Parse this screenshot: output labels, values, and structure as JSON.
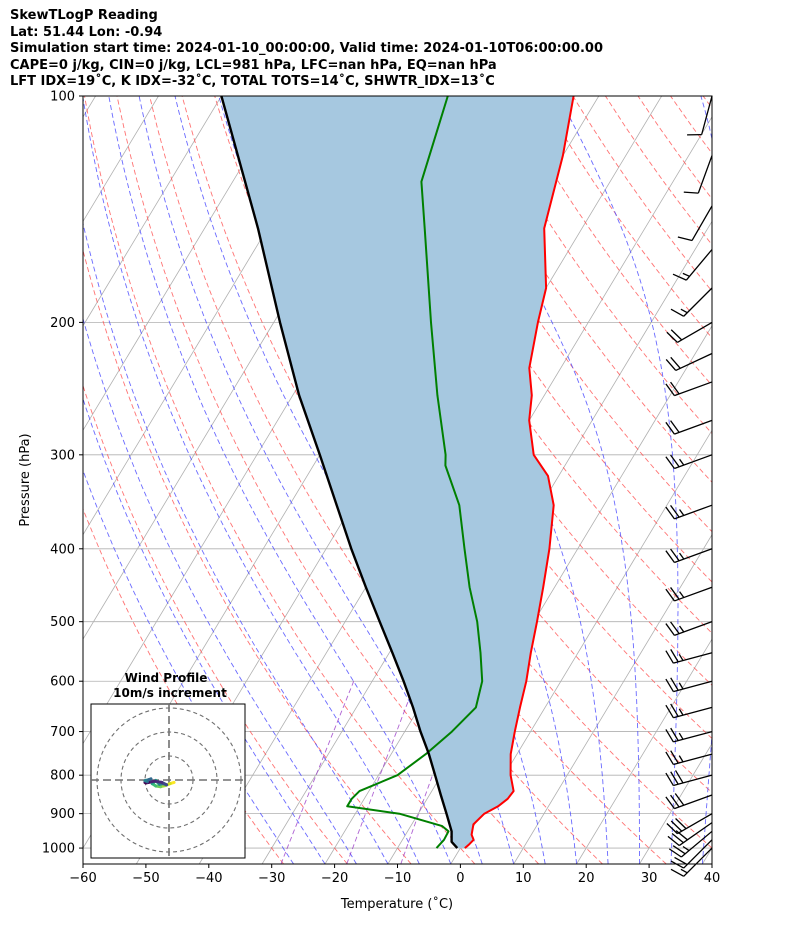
{
  "header": {
    "line1": "SkewTLogP Reading",
    "line2": "Lat: 51.44   Lon: -0.94",
    "line3": "Simulation start time: 2024-01-10_00:00:00, Valid time: 2024-01-10T06:00:00.00",
    "line4": "CAPE=0 j/kg, CIN=0 j/kg, LCL=981 hPa, LFC=nan hPa, EQ=nan hPa",
    "line5": "LFT IDX=19˚C, K IDX=-32˚C, TOTAL TOTS=14˚C, SHWTR_IDX=13˚C"
  },
  "chart_data": {
    "type": "line",
    "title": "SkewTLogP Reading",
    "xlabel": "Temperature (˚C)",
    "ylabel": "Pressure (hPa)",
    "xlim": [
      -60,
      40
    ],
    "ylim": [
      1050,
      100
    ],
    "y_scale": "log",
    "x_ticks": [
      -60,
      -50,
      -40,
      -30,
      -20,
      -10,
      0,
      10,
      20,
      30,
      40
    ],
    "x_tick_labels": [
      "−60",
      "−50",
      "−40",
      "−30",
      "−20",
      "−10",
      "0",
      "10",
      "20",
      "30",
      "40"
    ],
    "y_ticks": [
      1000,
      900,
      800,
      700,
      600,
      500,
      400,
      300,
      200,
      100
    ],
    "y_tick_labels": [
      "1000",
      "900",
      "800",
      "700",
      "600",
      "500",
      "400",
      "300",
      "200",
      "100"
    ],
    "grid": true,
    "skew_deg_per_decade": 72,
    "shaded_region_color": "#a6c8e0",
    "series": [
      {
        "role": "temperature",
        "color": "#ff0000",
        "points": [
          [
            1000,
            0.7
          ],
          [
            990,
            1.0
          ],
          [
            975,
            1.3
          ],
          [
            960,
            0.5
          ],
          [
            930,
            -0.2
          ],
          [
            900,
            0.5
          ],
          [
            880,
            2.0
          ],
          [
            860,
            2.8
          ],
          [
            840,
            3.0
          ],
          [
            800,
            1.0
          ],
          [
            750,
            -1.0
          ],
          [
            700,
            -2.5
          ],
          [
            650,
            -4.0
          ],
          [
            600,
            -5.5
          ],
          [
            550,
            -7.5
          ],
          [
            500,
            -9.5
          ],
          [
            450,
            -11.8
          ],
          [
            400,
            -14.5
          ],
          [
            350,
            -18.0
          ],
          [
            320,
            -21.7
          ],
          [
            300,
            -26.0
          ],
          [
            270,
            -30.0
          ],
          [
            250,
            -32.0
          ],
          [
            230,
            -35.0
          ],
          [
            200,
            -38.0
          ],
          [
            180,
            -40.0
          ],
          [
            150,
            -46.0
          ],
          [
            120,
            -50.0
          ],
          [
            100,
            -54.0
          ]
        ]
      },
      {
        "role": "dewpoint",
        "color": "#008000",
        "points": [
          [
            1000,
            -3.8
          ],
          [
            975,
            -3.4
          ],
          [
            950,
            -3.5
          ],
          [
            935,
            -5.0
          ],
          [
            900,
            -13.0
          ],
          [
            880,
            -22.0
          ],
          [
            860,
            -22.0
          ],
          [
            840,
            -21.5
          ],
          [
            800,
            -17.0
          ],
          [
            750,
            -14.5
          ],
          [
            700,
            -12.5
          ],
          [
            650,
            -11.0
          ],
          [
            600,
            -12.5
          ],
          [
            550,
            -15.5
          ],
          [
            500,
            -19.0
          ],
          [
            450,
            -23.5
          ],
          [
            400,
            -28.0
          ],
          [
            350,
            -33.0
          ],
          [
            310,
            -39.0
          ],
          [
            300,
            -40.0
          ],
          [
            250,
            -47.0
          ],
          [
            200,
            -55.0
          ],
          [
            150,
            -65.0
          ],
          [
            130,
            -70.0
          ],
          [
            100,
            -74.0
          ]
        ]
      },
      {
        "role": "parcel",
        "color": "#000000",
        "points": [
          [
            1000,
            -0.5
          ],
          [
            981,
            -2.0
          ],
          [
            950,
            -3.0
          ],
          [
            900,
            -5.5
          ],
          [
            850,
            -8.2
          ],
          [
            800,
            -11.0
          ],
          [
            750,
            -14.0
          ],
          [
            700,
            -17.5
          ],
          [
            650,
            -21.0
          ],
          [
            600,
            -25.0
          ],
          [
            550,
            -29.5
          ],
          [
            500,
            -34.5
          ],
          [
            450,
            -40.0
          ],
          [
            400,
            -46.0
          ],
          [
            350,
            -52.5
          ],
          [
            300,
            -60.0
          ],
          [
            250,
            -69.0
          ],
          [
            200,
            -79.0
          ],
          [
            150,
            -91.5
          ],
          [
            100,
            -110.0
          ]
        ]
      }
    ],
    "wind_barbs": [
      {
        "p": 1000,
        "spd": 15,
        "dir": 225
      },
      {
        "p": 975,
        "spd": 20,
        "dir": 225
      },
      {
        "p": 950,
        "spd": 25,
        "dir": 230
      },
      {
        "p": 925,
        "spd": 30,
        "dir": 235
      },
      {
        "p": 900,
        "spd": 30,
        "dir": 240
      },
      {
        "p": 850,
        "spd": 30,
        "dir": 250
      },
      {
        "p": 800,
        "spd": 30,
        "dir": 255
      },
      {
        "p": 750,
        "spd": 25,
        "dir": 255
      },
      {
        "p": 700,
        "spd": 25,
        "dir": 255
      },
      {
        "p": 650,
        "spd": 25,
        "dir": 255
      },
      {
        "p": 600,
        "spd": 25,
        "dir": 255
      },
      {
        "p": 550,
        "spd": 25,
        "dir": 255
      },
      {
        "p": 500,
        "spd": 25,
        "dir": 250
      },
      {
        "p": 450,
        "spd": 25,
        "dir": 250
      },
      {
        "p": 400,
        "spd": 25,
        "dir": 250
      },
      {
        "p": 350,
        "spd": 25,
        "dir": 250
      },
      {
        "p": 300,
        "spd": 25,
        "dir": 250
      },
      {
        "p": 270,
        "spd": 20,
        "dir": 250
      },
      {
        "p": 240,
        "spd": 20,
        "dir": 250
      },
      {
        "p": 220,
        "spd": 20,
        "dir": 245
      },
      {
        "p": 200,
        "spd": 20,
        "dir": 240
      },
      {
        "p": 180,
        "spd": 15,
        "dir": 225
      },
      {
        "p": 160,
        "spd": 15,
        "dir": 220
      },
      {
        "p": 140,
        "spd": 10,
        "dir": 210
      },
      {
        "p": 120,
        "spd": 10,
        "dir": 200
      },
      {
        "p": 100,
        "spd": 10,
        "dir": 195
      }
    ],
    "hodograph": {
      "title": "Wind Profile",
      "subtitle": "10m/s increment",
      "ring_increment_ms": 10,
      "points_uv": [
        [
          2.1,
          -1.0
        ],
        [
          0.5,
          -1.5
        ],
        [
          -1.5,
          -2.3
        ],
        [
          -3.5,
          -2.8
        ],
        [
          -5.5,
          -2.5
        ],
        [
          -7.0,
          -1.5
        ],
        [
          -5.5,
          -0.2
        ],
        [
          -4.0,
          -1.8
        ],
        [
          -2.5,
          -1.5
        ],
        [
          -1.0,
          -2.0
        ],
        [
          -3.0,
          -1.0
        ],
        [
          -6.0,
          -0.5
        ],
        [
          -8.5,
          -1.0
        ],
        [
          -9.5,
          -1.2
        ],
        [
          -10.0,
          -1.0
        ],
        [
          -9.0,
          -0.8
        ],
        [
          -10.0,
          -0.3
        ],
        [
          -8.5,
          0.1
        ],
        [
          -7.5,
          0.5
        ]
      ]
    }
  }
}
